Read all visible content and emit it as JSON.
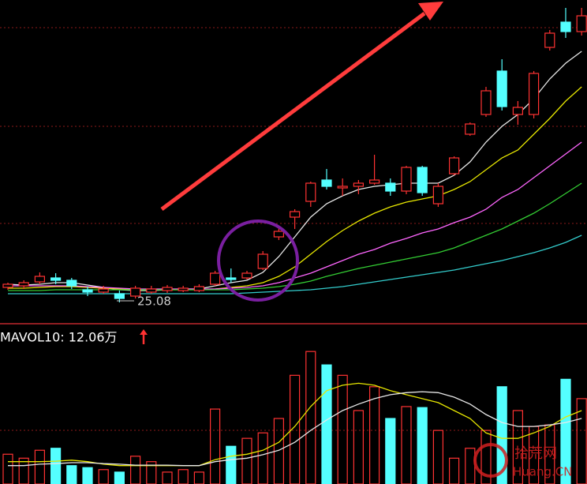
{
  "chart_data": {
    "type": "candlestick",
    "annotation_low": "25.08",
    "up_color": "#ff3232",
    "down_color": "#54ffff",
    "ylim": [
      24.54,
      32.74
    ],
    "open": [
      25.46,
      25.5,
      25.6,
      25.7,
      25.64,
      25.4,
      25.34,
      25.3,
      25.24,
      25.34,
      25.38,
      25.38,
      25.38,
      25.54,
      25.7,
      25.7,
      25.94,
      26.74,
      27.24,
      27.64,
      28.18,
      27.98,
      28.02,
      28.1,
      28.1,
      27.9,
      28.5,
      27.58,
      28.34,
      29.34,
      29.84,
      30.94,
      29.84,
      29.84,
      31.54,
      32.18,
      31.94
    ],
    "close": [
      25.54,
      25.58,
      25.74,
      25.64,
      25.5,
      25.34,
      25.42,
      25.18,
      25.44,
      25.42,
      25.46,
      25.44,
      25.48,
      25.82,
      25.66,
      25.82,
      26.3,
      26.88,
      27.38,
      28.1,
      28.02,
      28.02,
      28.1,
      28.18,
      27.9,
      28.5,
      27.86,
      28.02,
      28.74,
      29.6,
      30.44,
      30.04,
      30.02,
      30.88,
      31.9,
      31.94,
      32.34
    ],
    "high": [
      25.58,
      25.64,
      25.84,
      25.82,
      25.7,
      25.48,
      25.5,
      25.38,
      25.5,
      25.5,
      25.52,
      25.5,
      25.54,
      25.88,
      25.94,
      25.88,
      26.38,
      26.98,
      27.44,
      28.14,
      28.46,
      28.22,
      28.18,
      28.82,
      28.22,
      28.54,
      28.54,
      28.1,
      28.78,
      29.64,
      30.54,
      31.24,
      30.18,
      30.94,
      31.98,
      32.54,
      32.54
    ],
    "low": [
      25.4,
      25.42,
      25.54,
      25.54,
      25.42,
      25.24,
      25.3,
      25.08,
      25.18,
      25.3,
      25.32,
      25.34,
      25.34,
      25.5,
      25.58,
      25.66,
      25.9,
      26.66,
      26.94,
      27.5,
      27.94,
      27.78,
      27.82,
      28.06,
      27.78,
      27.82,
      27.78,
      27.5,
      28.3,
      29.3,
      29.78,
      29.94,
      29.58,
      29.74,
      31.46,
      31.78,
      31.84
    ],
    "moving_averages": [
      {
        "color": "#e8e8e8",
        "values": [
          25.54,
          25.52,
          25.54,
          25.58,
          25.58,
          25.52,
          25.46,
          25.4,
          25.38,
          25.38,
          25.4,
          25.42,
          25.42,
          25.5,
          25.58,
          25.64,
          25.84,
          26.24,
          26.74,
          27.24,
          27.58,
          27.78,
          27.94,
          28.02,
          28.06,
          28.1,
          28.1,
          28.1,
          28.3,
          28.64,
          29.14,
          29.54,
          29.84,
          30.24,
          30.74,
          31.14,
          31.44
        ]
      },
      {
        "color": "#e6e600",
        "values": [
          25.44,
          25.44,
          25.46,
          25.48,
          25.48,
          25.46,
          25.44,
          25.42,
          25.4,
          25.4,
          25.4,
          25.4,
          25.4,
          25.42,
          25.46,
          25.5,
          25.58,
          25.74,
          25.98,
          26.3,
          26.62,
          26.9,
          27.14,
          27.34,
          27.5,
          27.62,
          27.7,
          27.78,
          27.94,
          28.14,
          28.44,
          28.74,
          28.94,
          29.34,
          29.74,
          30.18,
          30.54
        ]
      },
      {
        "color": "#ff66ff",
        "values": [
          25.5,
          25.5,
          25.5,
          25.5,
          25.5,
          25.48,
          25.46,
          25.44,
          25.42,
          25.42,
          25.42,
          25.42,
          25.42,
          25.42,
          25.44,
          25.46,
          25.5,
          25.58,
          25.7,
          25.82,
          25.98,
          26.14,
          26.3,
          26.42,
          26.58,
          26.7,
          26.84,
          26.94,
          27.1,
          27.24,
          27.44,
          27.74,
          27.94,
          28.24,
          28.54,
          28.84,
          29.14
        ]
      },
      {
        "color": "#33cc33",
        "values": [
          25.38,
          25.38,
          25.38,
          25.4,
          25.4,
          25.4,
          25.4,
          25.4,
          25.4,
          25.4,
          25.4,
          25.4,
          25.4,
          25.4,
          25.4,
          25.42,
          25.44,
          25.48,
          25.54,
          25.62,
          25.74,
          25.84,
          25.94,
          26.02,
          26.1,
          26.18,
          26.26,
          26.34,
          26.46,
          26.62,
          26.78,
          26.94,
          27.14,
          27.34,
          27.58,
          27.84,
          28.1
        ]
      },
      {
        "color": "#33cccc",
        "values": [
          25.3,
          25.3,
          25.3,
          25.3,
          25.3,
          25.3,
          25.3,
          25.3,
          25.3,
          25.3,
          25.3,
          25.3,
          25.3,
          25.3,
          25.3,
          25.32,
          25.34,
          25.36,
          25.38,
          25.4,
          25.44,
          25.48,
          25.54,
          25.6,
          25.66,
          25.72,
          25.78,
          25.84,
          25.9,
          25.98,
          26.06,
          26.14,
          26.24,
          26.34,
          26.46,
          26.6,
          26.78
        ]
      }
    ],
    "volume": {
      "label": "MAVOL10: 12.06万",
      "ylim": [
        0,
        28
      ],
      "values": [
        6.0,
        5.2,
        6.8,
        7.2,
        3.7,
        3.3,
        2.9,
        2.4,
        5.6,
        4.5,
        2.4,
        2.9,
        2.4,
        15.1,
        7.6,
        9.2,
        10.3,
        13.2,
        21.9,
        26.7,
        24.0,
        21.9,
        14.8,
        19.6,
        13.2,
        15.6,
        15.4,
        10.8,
        5.2,
        7.2,
        10.8,
        19.6,
        14.8,
        11.6,
        11.9,
        21.1,
        17.2
      ],
      "moving_averages": [
        {
          "color": "#e6e600",
          "values": [
            4.5,
            4.5,
            4.5,
            4.6,
            4.8,
            4.5,
            4.0,
            3.7,
            3.7,
            3.7,
            3.7,
            3.7,
            3.7,
            4.9,
            5.6,
            6.0,
            6.8,
            8.4,
            11.6,
            15.6,
            18.8,
            19.9,
            20.3,
            19.9,
            18.8,
            18.0,
            17.2,
            16.4,
            14.8,
            13.2,
            10.3,
            9.2,
            9.2,
            10.3,
            11.6,
            13.5,
            14.8
          ]
        },
        {
          "color": "#e8e8e8",
          "values": [
            3.7,
            3.7,
            4.0,
            4.1,
            4.3,
            4.3,
            4.1,
            4.0,
            3.8,
            3.8,
            3.8,
            3.7,
            3.7,
            4.5,
            4.9,
            5.2,
            5.9,
            6.8,
            8.4,
            10.8,
            12.9,
            14.8,
            16.1,
            17.2,
            18.0,
            18.4,
            18.6,
            18.4,
            17.5,
            16.1,
            14.0,
            12.4,
            11.6,
            11.6,
            11.9,
            12.4,
            13.2
          ]
        }
      ]
    }
  },
  "watermark": {
    "site": "拾荒网",
    "domain": "Huang.CN"
  }
}
